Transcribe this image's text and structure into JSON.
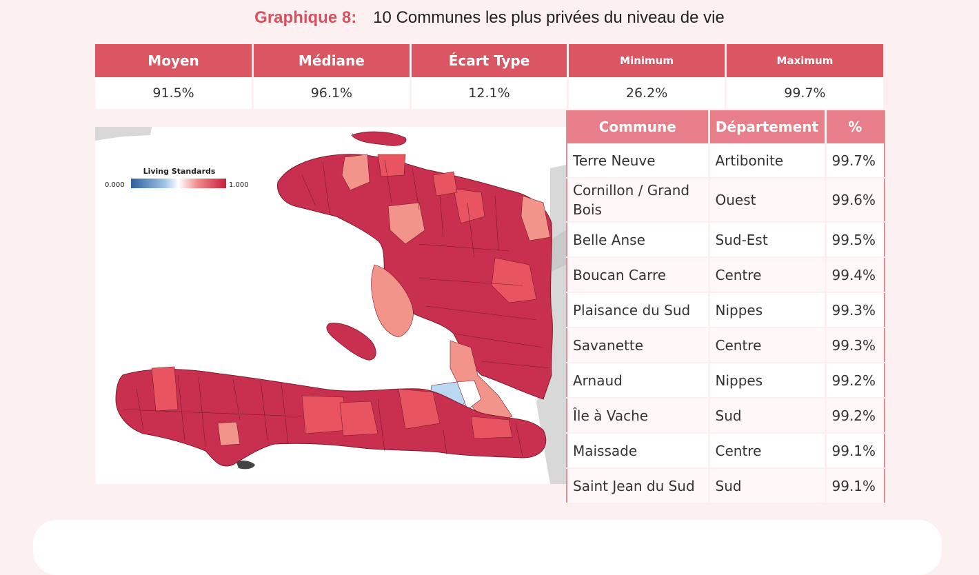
{
  "title": {
    "label": "Graphique 8:",
    "text": "10 Communes les plus privées du niveau de vie"
  },
  "stats": {
    "headers": [
      "Moyen",
      "Médiane",
      "Écart Type",
      "Minimum",
      "Maximum"
    ],
    "values": [
      "91.5%",
      "96.1%",
      "12.1%",
      "26.2%",
      "99.7%"
    ]
  },
  "map": {
    "legend_title": "Living Standards",
    "legend_min": "0.000",
    "legend_max": "1.000",
    "colors": {
      "high": "#c9304f",
      "mid": "#e8545f",
      "low": "#f3948a",
      "very_low": "#b9d8f1",
      "water": "#ffffff",
      "neighbor": "#d8d8d8"
    }
  },
  "communes": {
    "headers": [
      "Commune",
      "Département",
      "%"
    ],
    "rows": [
      {
        "commune": "Terre Neuve",
        "departement": "Artibonite",
        "pct": "99.7%"
      },
      {
        "commune": "Cornillon / Grand Bois",
        "departement": "Ouest",
        "pct": "99.6%"
      },
      {
        "commune": "Belle Anse",
        "departement": "Sud-Est",
        "pct": "99.5%"
      },
      {
        "commune": "Boucan Carre",
        "departement": "Centre",
        "pct": "99.4%"
      },
      {
        "commune": "Plaisance du Sud",
        "departement": "Nippes",
        "pct": "99.3%"
      },
      {
        "commune": "Savanette",
        "departement": "Centre",
        "pct": "99.3%"
      },
      {
        "commune": "Arnaud",
        "departement": "Nippes",
        "pct": "99.2%"
      },
      {
        "commune": "Île à Vache",
        "departement": "Sud",
        "pct": "99.2%"
      },
      {
        "commune": "Maissade",
        "departement": "Centre",
        "pct": "99.1%"
      },
      {
        "commune": "Saint Jean du Sud",
        "departement": "Sud",
        "pct": "99.1%"
      }
    ]
  }
}
